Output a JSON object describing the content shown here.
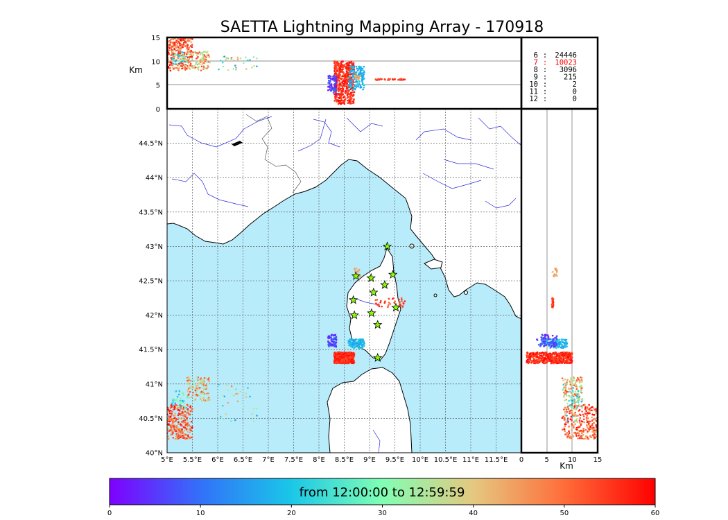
{
  "title": "SAETTA Lightning Mapping Array - 170918",
  "colors": {
    "sea": "#b9ecfb",
    "land": "#ffffff",
    "rivers": "#2a2ae0",
    "borders": "#555555",
    "station": "#88ff00",
    "frame": "#000000",
    "highlight": "#ff0000"
  },
  "chart_data": {
    "type": "scatter",
    "map": {
      "xlabel": "",
      "ylabel": "",
      "xlim": [
        5.0,
        12.0
      ],
      "ylim": [
        40.0,
        45.0
      ],
      "xticks": [
        "5°E",
        "5.5°E",
        "6°E",
        "6.5°E",
        "7°E",
        "7.5°E",
        "8°E",
        "8.5°E",
        "9°E",
        "9.5°E",
        "10°E",
        "10.5°E",
        "11°E",
        "11.5°E"
      ],
      "yticks": [
        "40°N",
        "40.5°N",
        "41°N",
        "41.5°N",
        "42°N",
        "42.5°N",
        "43°N",
        "43.5°N",
        "44°N",
        "44.5°N"
      ],
      "grid": true
    },
    "top_panel": {
      "ylabel": "Km",
      "ylim": [
        0,
        15
      ],
      "yticks": [
        "0",
        "5",
        "10",
        "15"
      ]
    },
    "side_panel": {
      "xlabel": "Km",
      "xlim": [
        0,
        15
      ],
      "xticks": [
        "0",
        "5",
        "10",
        "15"
      ]
    },
    "stations": [
      {
        "lon": 9.35,
        "lat": 43.0
      },
      {
        "lon": 8.73,
        "lat": 42.57
      },
      {
        "lon": 9.03,
        "lat": 42.54
      },
      {
        "lon": 9.46,
        "lat": 42.59
      },
      {
        "lon": 9.3,
        "lat": 42.44
      },
      {
        "lon": 9.08,
        "lat": 42.33
      },
      {
        "lon": 8.68,
        "lat": 42.22
      },
      {
        "lon": 8.7,
        "lat": 42.0
      },
      {
        "lon": 9.04,
        "lat": 42.03
      },
      {
        "lon": 9.52,
        "lat": 42.11
      },
      {
        "lon": 9.16,
        "lat": 41.86
      },
      {
        "lon": 9.16,
        "lat": 41.38
      }
    ],
    "clusters": [
      {
        "name": "",
        "lon": [
          8.3,
          8.7
        ],
        "lat": [
          41.3,
          41.46
        ],
        "alt": [
          1,
          10
        ],
        "time": [
          52,
          60
        ],
        "n": 520
      },
      {
        "name": "",
        "lon": [
          8.58,
          8.9
        ],
        "lat": [
          41.52,
          41.65
        ],
        "alt": [
          4,
          9
        ],
        "time": [
          14,
          22
        ],
        "n": 150
      },
      {
        "name": "",
        "lon": [
          8.18,
          8.35
        ],
        "lat": [
          41.54,
          41.72
        ],
        "alt": [
          3,
          7
        ],
        "time": [
          2,
          10
        ],
        "n": 70
      },
      {
        "name": "",
        "lon": [
          9.1,
          9.7
        ],
        "lat": [
          42.1,
          42.25
        ],
        "alt": [
          6,
          6.3
        ],
        "time": [
          50,
          58
        ],
        "n": 40
      },
      {
        "name": "",
        "lon": [
          8.7,
          8.82
        ],
        "lat": [
          42.56,
          42.68
        ],
        "alt": [
          6,
          7
        ],
        "time": [
          40,
          46
        ],
        "n": 15
      },
      {
        "name": "",
        "lon": [
          5.0,
          5.5
        ],
        "lat": [
          40.2,
          40.7
        ],
        "alt": [
          8,
          15
        ],
        "time": [
          42,
          60
        ],
        "n": 260
      },
      {
        "name": "",
        "lon": [
          5.4,
          5.85
        ],
        "lat": [
          40.75,
          41.1
        ],
        "alt": [
          8,
          12
        ],
        "time": [
          30,
          55
        ],
        "n": 110
      },
      {
        "name": "",
        "lon": [
          5.1,
          5.4
        ],
        "lat": [
          40.65,
          40.9
        ],
        "alt": [
          9,
          12
        ],
        "time": [
          15,
          35
        ],
        "n": 40
      },
      {
        "name": "",
        "lon": [
          6.0,
          6.8
        ],
        "lat": [
          40.45,
          41.05
        ],
        "alt": [
          8,
          11
        ],
        "time": [
          15,
          50
        ],
        "n": 30
      }
    ],
    "flash_counts": [
      {
        "label": "6",
        "value": "24446",
        "highlight": false
      },
      {
        "label": "7",
        "value": "10023",
        "highlight": true
      },
      {
        "label": "8",
        "value": "3096",
        "highlight": false
      },
      {
        "label": "9",
        "value": "215",
        "highlight": false
      },
      {
        "label": "10",
        "value": "2",
        "highlight": false
      },
      {
        "label": "11",
        "value": "0",
        "highlight": false
      },
      {
        "label": "12",
        "value": "0",
        "highlight": false
      }
    ],
    "colorbar": {
      "label": "from 12:00:00 to 12:59:59",
      "range": [
        0,
        60
      ],
      "ticks": [
        "0",
        "10",
        "20",
        "30",
        "40",
        "50",
        "60"
      ],
      "colormap": "rainbow"
    }
  }
}
